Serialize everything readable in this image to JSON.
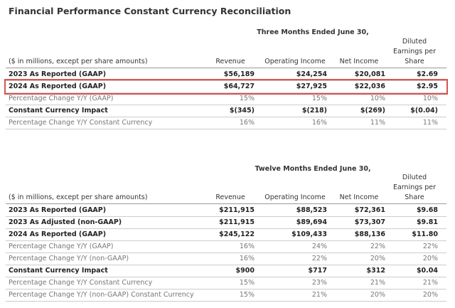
{
  "title": "Financial Performance Constant Currency Reconciliation",
  "tables": [
    {
      "period": "Three Months Ended June 30,",
      "columns": [
        "($ in millions, except per share amounts)",
        "Revenue",
        "Operating Income",
        "Net Income",
        "Diluted Earnings per Share"
      ],
      "rows": [
        [
          "2023 As Reported (GAAP)",
          "$56,189",
          "$24,254",
          "$20,081",
          "$2.69"
        ],
        [
          "2024 As Reported (GAAP)",
          "$64,727",
          "$27,925",
          "$22,036",
          "$2.95"
        ],
        [
          "Percentage Change Y/Y (GAAP)",
          "15%",
          "15%",
          "10%",
          "10%"
        ],
        [
          "Constant Currency Impact",
          "$(345)",
          "$(218)",
          "$(269)",
          "$(0.04)"
        ],
        [
          "Percentage Change Y/Y Constant Currency",
          "16%",
          "16%",
          "11%",
          "11%"
        ]
      ]
    },
    {
      "period": "Twelve Months Ended June 30,",
      "columns": [
        "($ in millions, except per share amounts)",
        "Revenue",
        "Operating Income",
        "Net Income",
        "Diluted Earnings per Share"
      ],
      "rows": [
        [
          "2023 As Reported (GAAP)",
          "$211,915",
          "$88,523",
          "$72,361",
          "$9.68"
        ],
        [
          "2023 As Adjusted (non-GAAP)",
          "$211,915",
          "$89,694",
          "$73,307",
          "$9.81"
        ],
        [
          "2024 As Reported (GAAP)",
          "$245,122",
          "$109,433",
          "$88,136",
          "$11.80"
        ],
        [
          "Percentage Change Y/Y (GAAP)",
          "16%",
          "24%",
          "22%",
          "22%"
        ],
        [
          "Percentage Change Y/Y (non-GAAP)",
          "16%",
          "22%",
          "20%",
          "20%"
        ],
        [
          "Constant Currency Impact",
          "$900",
          "$717",
          "$312",
          "$0.04"
        ],
        [
          "Percentage Change Y/Y Constant Currency",
          "15%",
          "23%",
          "21%",
          "21%"
        ],
        [
          "Percentage Change Y/Y (non-GAAP) Constant Currency",
          "15%",
          "21%",
          "20%",
          "20%"
        ]
      ]
    }
  ]
}
